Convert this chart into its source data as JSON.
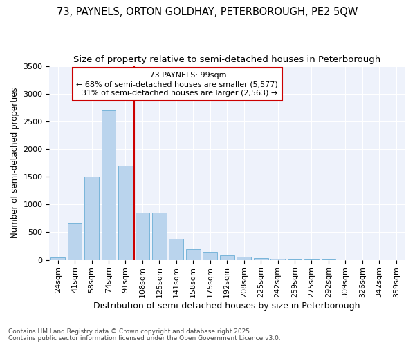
{
  "title1": "73, PAYNELS, ORTON GOLDHAY, PETERBOROUGH, PE2 5QW",
  "title2": "Size of property relative to semi-detached houses in Peterborough",
  "xlabel": "Distribution of semi-detached houses by size in Peterborough",
  "ylabel": "Number of semi-detached properties",
  "categories": [
    "24sqm",
    "41sqm",
    "58sqm",
    "74sqm",
    "91sqm",
    "108sqm",
    "125sqm",
    "141sqm",
    "158sqm",
    "175sqm",
    "192sqm",
    "208sqm",
    "225sqm",
    "242sqm",
    "259sqm",
    "275sqm",
    "292sqm",
    "309sqm",
    "326sqm",
    "342sqm",
    "359sqm"
  ],
  "values": [
    50,
    670,
    1500,
    2700,
    1700,
    850,
    850,
    380,
    200,
    140,
    80,
    55,
    35,
    15,
    10,
    5,
    2,
    1,
    0,
    0,
    0
  ],
  "bar_color": "#bad4ed",
  "bar_edge_color": "#6aaed6",
  "vline_x": 4.5,
  "vline_color": "#cc0000",
  "property_label": "73 PAYNELS: 99sqm",
  "pct_smaller": "68%",
  "n_smaller": "5,577",
  "pct_larger": "31%",
  "n_larger": "2,563",
  "annotation_box_color": "#cc0000",
  "ylim": [
    0,
    3500
  ],
  "yticks": [
    0,
    500,
    1000,
    1500,
    2000,
    2500,
    3000,
    3500
  ],
  "bg_color": "#eef2fb",
  "footer1": "Contains HM Land Registry data © Crown copyright and database right 2025.",
  "footer2": "Contains public sector information licensed under the Open Government Licence v3.0.",
  "title1_fontsize": 10.5,
  "title2_fontsize": 9.5,
  "xlabel_fontsize": 9,
  "ylabel_fontsize": 8.5,
  "tick_fontsize": 8,
  "annot_fontsize": 8,
  "footer_fontsize": 6.5
}
